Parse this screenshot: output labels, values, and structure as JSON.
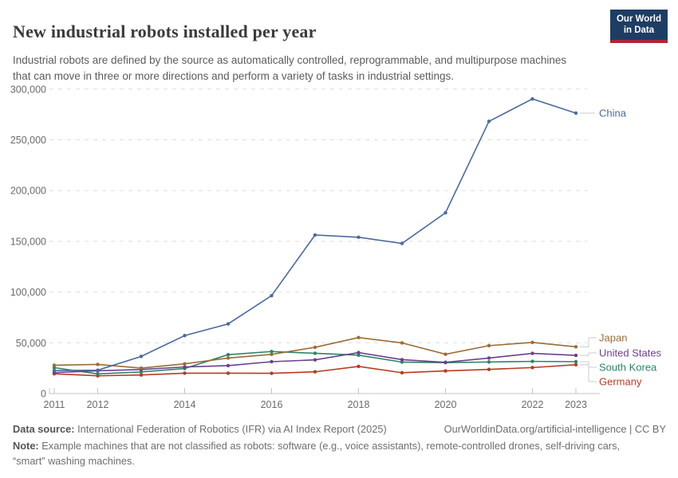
{
  "header": {
    "title": "New industrial robots installed per year",
    "subtitle": "Industrial robots are defined by the source as automatically controlled, reprogrammable, and multipurpose machines that can move in three or more directions and perform a variety of tasks in industrial settings.",
    "logo_line1": "Our World",
    "logo_line2": "in Data"
  },
  "chart_data": {
    "type": "line",
    "title": "New industrial robots installed per year",
    "xlabel": "",
    "ylabel": "",
    "ylim": [
      0,
      300000
    ],
    "grid": "horizontal dashed",
    "legend_position": "right of line endpoints",
    "x": [
      2011,
      2012,
      2013,
      2014,
      2015,
      2016,
      2017,
      2018,
      2019,
      2020,
      2021,
      2022,
      2023
    ],
    "x_ticks": [
      2011,
      2012,
      2014,
      2016,
      2018,
      2020,
      2022,
      2023
    ],
    "y_ticks": [
      0,
      50000,
      100000,
      150000,
      200000,
      250000,
      300000
    ],
    "y_tick_labels": [
      "0",
      "50,000",
      "100,000",
      "150,000",
      "200,000",
      "250,000",
      "300,000"
    ],
    "series": [
      {
        "name": "China",
        "color": "#4C6A9C",
        "values": [
          22600,
          23000,
          36600,
          57100,
          68600,
          96500,
          156200,
          154000,
          147900,
          178100,
          268200,
          290300,
          276300
        ]
      },
      {
        "name": "Japan",
        "color": "#996D39",
        "values": [
          27900,
          28700,
          25100,
          29300,
          35000,
          38600,
          45600,
          55200,
          49900,
          38700,
          47200,
          50400,
          46100
        ]
      },
      {
        "name": "United States",
        "color": "#6D3E91",
        "values": [
          20600,
          22400,
          23700,
          26200,
          27500,
          31400,
          33200,
          40400,
          33400,
          30800,
          35000,
          39600,
          37600
        ]
      },
      {
        "name": "South Korea",
        "color": "#2C8465",
        "values": [
          25500,
          19400,
          21300,
          24700,
          38300,
          41400,
          39700,
          37800,
          31000,
          30500,
          31100,
          31700,
          31400
        ]
      },
      {
        "name": "Germany",
        "color": "#B63C22",
        "values": [
          19500,
          17500,
          18300,
          20100,
          20100,
          20000,
          21400,
          26700,
          20500,
          22300,
          23800,
          25600,
          28400
        ]
      }
    ]
  },
  "footer": {
    "data_source_label": "Data source:",
    "data_source": "International Federation of Robotics (IFR) via AI Index Report (2025)",
    "attribution": "OurWorldinData.org/artificial-intelligence | CC BY",
    "note_label": "Note:",
    "note": "Example machines that are not classified as robots: software (e.g., voice assistants), remote-controlled drones, self-driving cars, “smart” washing machines."
  }
}
